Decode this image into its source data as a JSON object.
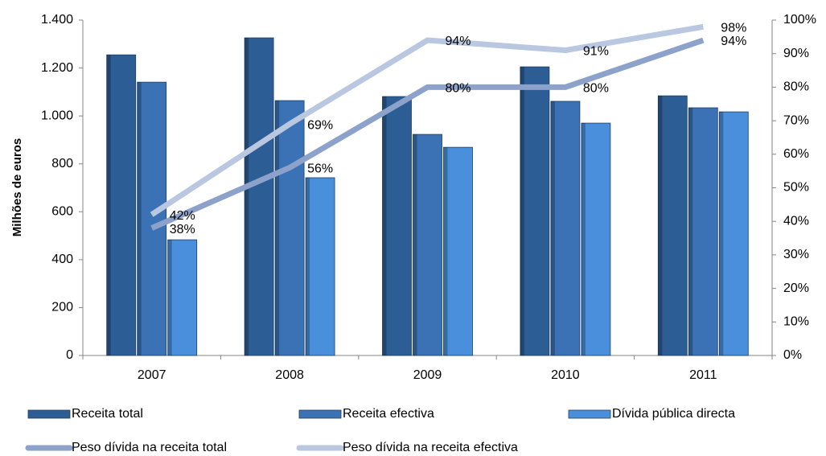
{
  "chart_data": {
    "type": "bar",
    "y_label": "Milhões de euros",
    "categories": [
      "2007",
      "2008",
      "2009",
      "2010",
      "2011"
    ],
    "series": [
      {
        "name": "Receita total",
        "color": "#2c5d94",
        "values": [
          1255,
          1326,
          1081,
          1205,
          1084
        ]
      },
      {
        "name": "Receita efectiva",
        "color": "#3a72b5",
        "values": [
          1141,
          1064,
          923,
          1061,
          1034
        ]
      },
      {
        "name": "Dívida pública directa",
        "color": "#4a8fdb",
        "values": [
          483,
          742,
          869,
          970,
          1017
        ]
      },
      {
        "name": "Peso dívida na receita total",
        "type": "line",
        "axis": "y2",
        "color": "#8ca2cb",
        "values": [
          38,
          56,
          80,
          80,
          94
        ],
        "value_labels": [
          "38%",
          "56%",
          "80%",
          "80%",
          "94%"
        ]
      },
      {
        "name": "Peso dívida na receita efectiva",
        "type": "line",
        "axis": "y2",
        "color": "#bac7e1",
        "values": [
          42,
          69,
          94,
          91,
          98
        ],
        "value_labels": [
          "42%",
          "69%",
          "94%",
          "91%",
          "98%"
        ]
      }
    ],
    "ylim": [
      0,
      1400
    ],
    "yticks": [
      0,
      200,
      400,
      600,
      800,
      {
        "value": 1000,
        "label": "1.000"
      },
      {
        "value": 1200,
        "label": "1.200"
      },
      {
        "value": 1400,
        "label": "1.400"
      }
    ],
    "y2lim": [
      0,
      100
    ],
    "y2ticks": [
      {
        "value": 0,
        "label": "0%"
      },
      {
        "value": 10,
        "label": "10%"
      },
      {
        "value": 20,
        "label": "20%"
      },
      {
        "value": 30,
        "label": "30%"
      },
      {
        "value": 40,
        "label": "40%"
      },
      {
        "value": 50,
        "label": "50%"
      },
      {
        "value": 60,
        "label": "60%"
      },
      {
        "value": 70,
        "label": "70%"
      },
      {
        "value": 80,
        "label": "80%"
      },
      {
        "value": 90,
        "label": "90%"
      },
      {
        "value": 100,
        "label": "100%"
      }
    ],
    "grid": false
  }
}
